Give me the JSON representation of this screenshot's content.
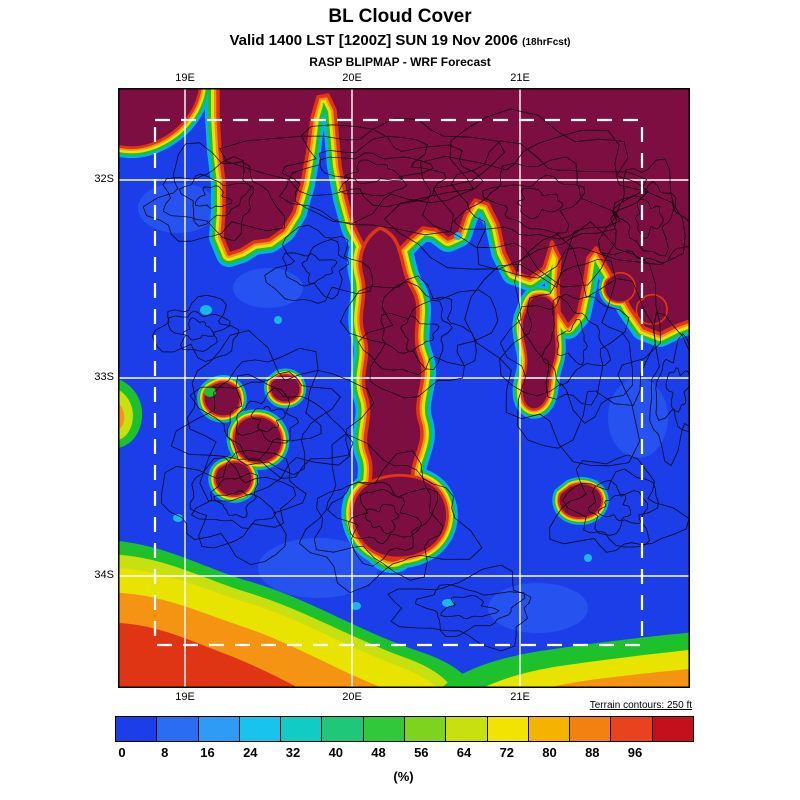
{
  "header": {
    "title": "BL Cloud Cover",
    "valid": "Valid 1400 LST [1200Z] SUN 19 Nov 2006",
    "fcst": "(18hrFcst)",
    "model": "RASP BLIPMAP - WRF Forecast"
  },
  "axes": {
    "top": [
      "19E",
      "20E",
      "21E"
    ],
    "bottom": [
      "19E",
      "20E",
      "21E"
    ],
    "left": [
      "32S",
      "33S",
      "34S"
    ]
  },
  "legend": {
    "note": "Terrain contours: 250 ft",
    "units": "(%)"
  },
  "colorbar": {
    "labels": [
      "0",
      "8",
      "16",
      "24",
      "32",
      "40",
      "48",
      "56",
      "64",
      "72",
      "80",
      "88",
      "96"
    ],
    "colors": [
      "#1b3ee8",
      "#2a6cf2",
      "#2e9cf5",
      "#18c3ee",
      "#10ccc4",
      "#1ec878",
      "#32c83c",
      "#7ed31f",
      "#c8e010",
      "#f2e400",
      "#f5b300",
      "#f38112",
      "#e8431c",
      "#c4101d"
    ]
  },
  "map": {
    "low_cover_color": "#1b3ee8",
    "high_cover_color": "#7c0e41",
    "grid_color": "#ffffff",
    "contour_color": "#000000",
    "domain_box_color": "#ffffff"
  },
  "chart_data": {
    "type": "heatmap",
    "title": "BL Cloud Cover",
    "units": "(%)",
    "x_ticks": [
      "19E",
      "20E",
      "21E"
    ],
    "y_ticks": [
      "32S",
      "33S",
      "34S"
    ],
    "scale_values": [
      0,
      8,
      16,
      24,
      32,
      40,
      48,
      56,
      64,
      72,
      80,
      88,
      96
    ],
    "legend_position": "bottom",
    "notes": "Boundary-layer cloud cover percentage field over the Western Cape; blue = 0%, maroon = ~100%, black terrain contours every 250 ft, white lat/lon grid, white dashed nested model domain box"
  }
}
